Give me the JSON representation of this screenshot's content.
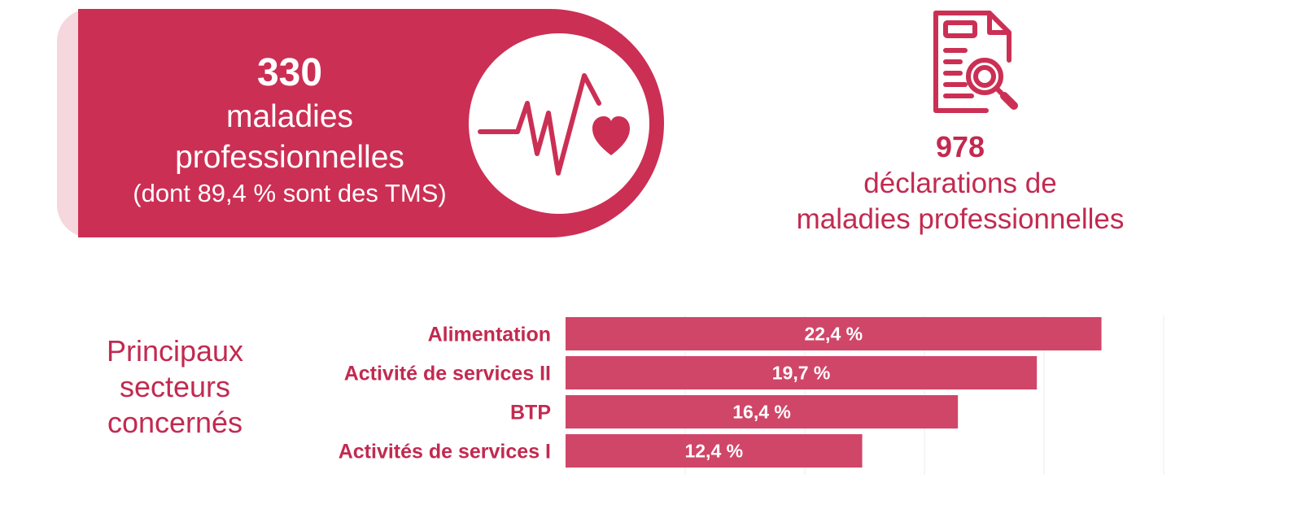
{
  "colors": {
    "accent": "#cc2f54",
    "bar": "#d04668",
    "text_accent": "#c22a50",
    "banner_shadow": "#f6d7de",
    "grid": "#ececec"
  },
  "banner": {
    "number": "330",
    "line1": "maladies",
    "line2": "professionnelles",
    "note": "(dont 89,4 % sont des TMS)",
    "icon": "heartbeat-icon"
  },
  "declarations": {
    "icon": "document-search-icon",
    "number": "978",
    "line1": "déclarations de",
    "line2": "maladies professionnelles"
  },
  "sectors": {
    "title_lines": [
      "Principaux",
      "secteurs",
      "concernés"
    ]
  },
  "chart_data": {
    "type": "bar",
    "orientation": "horizontal",
    "categories": [
      "Alimentation",
      "Activité de services II",
      "BTP",
      "Activités de services I"
    ],
    "values": [
      22.4,
      19.7,
      16.4,
      12.4
    ],
    "data_labels": [
      "22,4 %",
      "19,7 %",
      "16,4 %",
      "12,4 %"
    ],
    "title": "",
    "xlabel": "",
    "ylabel": "",
    "xlim": [
      0,
      25
    ],
    "grid": true,
    "legend": "none"
  }
}
